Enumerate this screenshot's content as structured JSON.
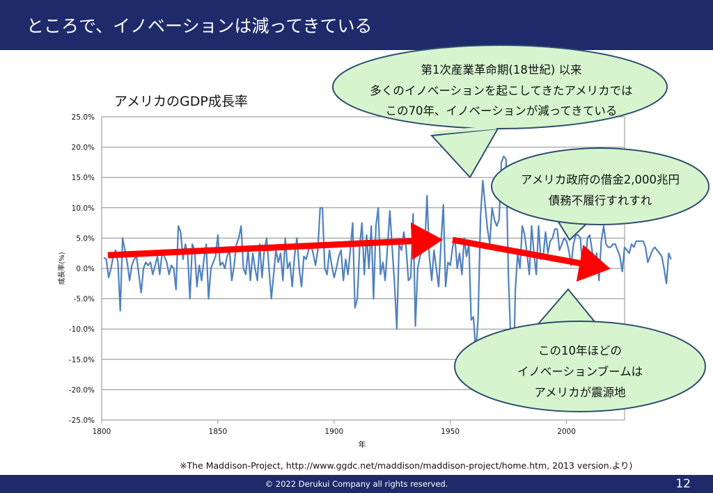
{
  "slide": {
    "title": "ところで、イノベーションは減ってきている",
    "source": "※The Maddison-Project, http://www.ggdc.net/maddison/maddison-project/home.htm, 2013 version.より)",
    "copyright": "© 2022 Derukui Company all rights reserved.",
    "page_number": "12"
  },
  "callouts": {
    "top": [
      "第1次産業革命期(18世紀) 以来",
      "多くのイノベーションを起こしてきたアメリカでは",
      "この70年、イノベーションが減ってきている"
    ],
    "right": [
      "アメリカ政府の借金2,000兆円",
      "債務不履行すれすれ"
    ],
    "bottom": [
      "この10年ほどの",
      "イノベーションブームは",
      "アメリカが震源地"
    ]
  },
  "colors": {
    "header": "#1f2a6b",
    "line": "#4f81bd",
    "arrow": "#ff0000",
    "callout_fill": "#d6f5cf",
    "callout_stroke": "#2d4c6e"
  },
  "chart_data": {
    "type": "line",
    "title": "アメリカのGDP成長率",
    "xlabel": "年",
    "ylabel": "成長率(%)",
    "xlim": [
      1800,
      2025
    ],
    "ylim": [
      -25,
      25
    ],
    "x_ticks": [
      1800,
      1850,
      1900,
      1950,
      2000
    ],
    "y_ticks": [
      "25.0%",
      "20.0%",
      "15.0%",
      "10.0%",
      "5.0%",
      "0.0%",
      "-5.0%",
      "-10.0%",
      "-15.0%",
      "-20.0%",
      "-25.0%"
    ],
    "grid": true,
    "series": [
      {
        "x_start": 1801,
        "values": [
          1.8,
          1.5,
          -1.5,
          0.0,
          2.0,
          3.0,
          1.0,
          -7.0,
          5.0,
          3.0,
          1.0,
          -2.0,
          0.5,
          1.5,
          2.0,
          -1.0,
          -4.0,
          0.0,
          1.0,
          0.5,
          1.0,
          -1.0,
          0.5,
          2.0,
          -1.0,
          2.5,
          2.0,
          1.0,
          -1.0,
          0.5,
          0.0,
          -3.5,
          7.0,
          6.0,
          1.5,
          4.0,
          2.5,
          -5.0,
          4.0,
          3.0,
          -3.0,
          0.5,
          -2.0,
          1.5,
          4.0,
          -5.0,
          0.0,
          1.0,
          2.0,
          5.5,
          0.5,
          1.0,
          0.0,
          2.0,
          3.0,
          -2.0,
          0.5,
          4.0,
          5.0,
          7.0,
          0.0,
          -1.0,
          3.0,
          -2.0,
          2.5,
          0.0,
          -2.0,
          4.0,
          -1.5,
          3.0,
          5.0,
          0.0,
          -5.0,
          -1.0,
          3.0,
          1.0,
          2.5,
          -2.0,
          5.0,
          0.0,
          1.0,
          -3.0,
          2.0,
          5.0,
          0.0,
          -3.0,
          2.0,
          1.5,
          3.0,
          4.0,
          2.5,
          0.5,
          3.0,
          10.0,
          10.0,
          0.0,
          -1.0,
          3.0,
          0.5,
          -1.5,
          0.0,
          2.0,
          3.0,
          -2.0,
          1.5,
          -1.0,
          3.0,
          7.5,
          -6.5,
          -5.0,
          3.5,
          7.5,
          -1.0,
          5.5,
          0.0,
          7.0,
          -5.0,
          7.0,
          10.0,
          -1.0,
          1.0,
          -2.0,
          3.5,
          9.5,
          3.5,
          -2.5,
          -10.0,
          4.0,
          3.0,
          6.0,
          3.5,
          -2.0,
          -1.5,
          9.0,
          -9.5,
          0.0,
          2.0,
          3.0,
          3.5,
          12.0,
          2.0,
          -2.0,
          3.0,
          0.0,
          -3.0,
          4.0,
          10.5,
          -3.0,
          1.0,
          0.5,
          3.5,
          5.0,
          0.0,
          2.5,
          -1.0,
          5.0,
          2.0,
          4.0,
          -8.5,
          -8.0,
          -14.0,
          -8.0,
          8.5,
          14.5,
          10.5,
          6.5,
          4.0,
          10.0,
          8.0,
          7.0,
          8.0,
          17.5,
          18.5,
          18.0,
          -1.0,
          -11.5,
          -21.5,
          -3.5,
          2.5,
          0.0,
          7.0,
          5.5,
          2.5,
          -1.0,
          7.0,
          2.5,
          -1.0,
          7.0,
          1.5,
          2.0,
          6.0,
          2.5,
          4.5,
          5.0,
          6.5,
          6.5,
          3.0,
          4.0,
          5.0,
          4.5,
          3.0,
          0.5,
          4.0,
          5.5,
          5.5,
          5.0,
          -0.5,
          -0.5,
          5.0,
          5.5,
          3.0,
          0.0,
          2.5,
          -2.0,
          4.5,
          7.0,
          4.0,
          3.5,
          3.5,
          4.0,
          4.0,
          3.0,
          2.0,
          -0.5,
          3.5,
          3.0,
          2.5,
          4.0,
          3.5,
          4.5,
          4.5,
          4.5,
          4.5,
          3.5,
          1.0,
          2.0,
          3.0,
          3.5,
          3.0,
          2.5,
          2.0,
          0.0,
          -2.5,
          2.5,
          1.5
        ]
      }
    ]
  }
}
